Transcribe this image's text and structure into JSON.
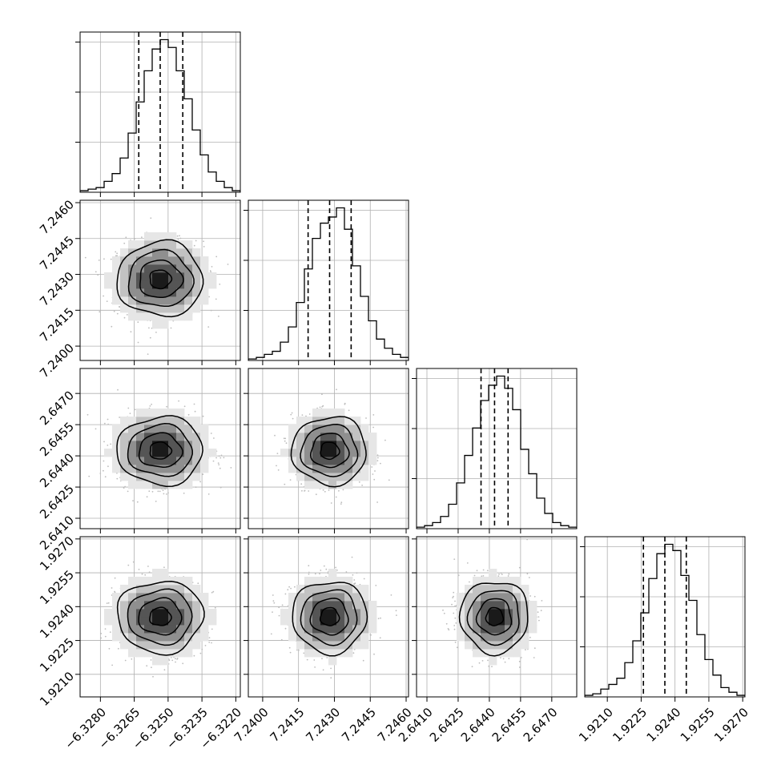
{
  "chart_data": {
    "type": "corner",
    "title": "",
    "params": [
      {
        "range": [
          -6.3289,
          -6.3218
        ],
        "ticks": [
          -6.328,
          -6.3265,
          -6.325,
          -6.3235,
          -6.322
        ],
        "tick_labels": [
          "−6.3280",
          "−6.3265",
          "−6.3250",
          "−6.3235",
          "−6.3220"
        ],
        "mean": -6.32535,
        "sigma": 0.00095,
        "quantiles": [
          -6.3263,
          -6.32535,
          -6.32435
        ],
        "hist_counts": [
          1,
          2,
          3,
          7,
          12,
          22,
          38,
          58,
          78,
          92,
          98,
          93,
          78,
          60,
          40,
          24,
          13,
          7,
          3,
          1
        ]
      },
      {
        "range": [
          7.2394,
          7.2461
        ],
        "ticks": [
          7.24,
          7.2415,
          7.243,
          7.2445,
          7.246
        ],
        "tick_labels": [
          "7.2400",
          "7.2415",
          "7.2430",
          "7.2445",
          "7.2460"
        ],
        "mean": 7.2428,
        "sigma": 0.00078,
        "quantiles": [
          7.2419,
          7.2428,
          7.2437
        ],
        "hist_counts": [
          1,
          2,
          4,
          6,
          12,
          22,
          38,
          60,
          80,
          90,
          94,
          100,
          86,
          62,
          42,
          26,
          14,
          8,
          4,
          2
        ]
      },
      {
        "range": [
          2.6405,
          2.6482
        ],
        "ticks": [
          2.641,
          2.6425,
          2.644,
          2.6455,
          2.647
        ],
        "tick_labels": [
          "2.6410",
          "2.6425",
          "2.6440",
          "2.6455",
          "2.6470"
        ],
        "mean": 2.64425,
        "sigma": 0.00082,
        "quantiles": [
          2.6436,
          2.64425,
          2.6449
        ],
        "hist_counts": [
          1,
          2,
          4,
          8,
          16,
          30,
          48,
          66,
          84,
          94,
          100,
          92,
          78,
          52,
          36,
          20,
          10,
          4,
          2,
          1
        ]
      },
      {
        "range": [
          1.92,
          1.9271
        ],
        "ticks": [
          1.921,
          1.9225,
          1.924,
          1.9255,
          1.927
        ],
        "tick_labels": [
          "1.9210",
          "1.9225",
          "1.9240",
          "1.9255",
          "1.9270"
        ],
        "mean": 1.92355,
        "sigma": 0.0008,
        "quantiles": [
          1.9226,
          1.92355,
          1.9245
        ],
        "hist_counts": [
          1,
          2,
          5,
          8,
          12,
          22,
          36,
          54,
          76,
          92,
          98,
          94,
          78,
          62,
          40,
          24,
          14,
          6,
          3,
          1
        ]
      }
    ],
    "correlations": [
      [
        1,
        0,
        0,
        0
      ],
      [
        0,
        1,
        0,
        0
      ],
      [
        0,
        0,
        1,
        0
      ],
      [
        0,
        0,
        0,
        1
      ]
    ],
    "contour_levels_sigma": [
      0.5,
      1.0,
      1.5,
      2.0
    ],
    "samples_per_panel": 1100,
    "grid": true,
    "colors": {
      "line": "#000000",
      "grid": "#b0b0b0",
      "scatter": "#bdbdbd",
      "density": [
        "#ffffff",
        "#e6e6e6",
        "#c2c2c2",
        "#8f8f8f",
        "#555555",
        "#1a1a1a"
      ]
    }
  }
}
